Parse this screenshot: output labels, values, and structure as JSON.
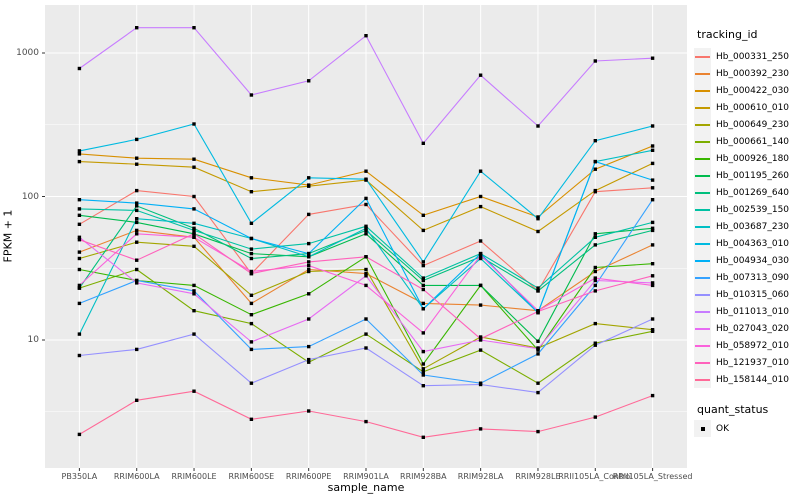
{
  "chart_data": {
    "type": "line",
    "xlabel": "sample_name",
    "ylabel": "FPKM + 1",
    "y_scale": "log10",
    "y_ticks": [
      10,
      100,
      1000
    ],
    "y_tick_labels": [
      "10",
      "100",
      "1000"
    ],
    "y_minor_ticks_log": [
      0.5,
      1.5,
      2.5
    ],
    "grid": "on",
    "panel_bg": "#EBEBEB",
    "grid_color": "#FFFFFF",
    "point_color": "#000000",
    "point_shape": "square",
    "legend_position": "right",
    "categories": [
      "PB350LA",
      "RRIM600LA",
      "RRIM600LE",
      "RRIM600SE",
      "RRIM600PE",
      "RRIM901LA",
      "RRIM928BA",
      "RRIM928LA",
      "RRIM928LE",
      "RRII105LA_Control",
      "RRII105LA_Stressed"
    ],
    "series": [
      {
        "name": "Hb_000331_250",
        "color": "#F8766D",
        "values": [
          64,
          110,
          100,
          29,
          75,
          88,
          33,
          49,
          22,
          108,
          115
        ]
      },
      {
        "name": "Hb_000392_230",
        "color": "#EA8331",
        "values": [
          41,
          58,
          52,
          18,
          31,
          29,
          18,
          17.5,
          16,
          30,
          46
        ]
      },
      {
        "name": "Hb_000422_030",
        "color": "#D89000",
        "values": [
          198,
          185,
          182,
          135,
          120,
          150,
          74,
          100,
          72,
          155,
          225
        ]
      },
      {
        "name": "Hb_000610_010",
        "color": "#C49A00",
        "values": [
          175,
          168,
          160,
          108,
          118,
          130,
          58,
          85,
          57,
          110,
          170
        ]
      },
      {
        "name": "Hb_000649_230",
        "color": "#A3A500",
        "values": [
          37,
          48,
          45,
          20.5,
          30,
          31,
          6.3,
          10.5,
          8.8,
          13,
          11.8
        ]
      },
      {
        "name": "Hb_000661_140",
        "color": "#7CAE00",
        "values": [
          23,
          31,
          16,
          13,
          7,
          11,
          6,
          8.5,
          5,
          9.5,
          11.5
        ]
      },
      {
        "name": "Hb_000926_180",
        "color": "#39B600",
        "values": [
          31,
          26,
          24,
          15,
          21,
          38,
          6.8,
          24,
          8.5,
          32,
          34
        ]
      },
      {
        "name": "Hb_001195_260",
        "color": "#00BB4E",
        "values": [
          74,
          66,
          55,
          40,
          38,
          55,
          24,
          24,
          9.8,
          55,
          60
        ]
      },
      {
        "name": "Hb_001269_640",
        "color": "#00BF7D",
        "values": [
          23,
          86,
          60,
          37,
          40,
          58,
          26,
          38,
          22,
          46,
          58
        ]
      },
      {
        "name": "Hb_002539_150",
        "color": "#00C1A3",
        "values": [
          82,
          80,
          58,
          43,
          47,
          62,
          27,
          40,
          23,
          52,
          66
        ]
      },
      {
        "name": "Hb_003687_230",
        "color": "#00BFC4",
        "values": [
          11,
          70,
          65,
          51,
          38,
          60,
          16.5,
          37,
          15.5,
          175,
          210
        ]
      },
      {
        "name": "Hb_004363_010",
        "color": "#00BAE0",
        "values": [
          208,
          250,
          320,
          65,
          135,
          132,
          35,
          150,
          70,
          245,
          310
        ]
      },
      {
        "name": "Hb_004934_030",
        "color": "#00B0F6",
        "values": [
          95,
          90,
          82,
          51,
          40,
          97,
          16.5,
          40,
          15.5,
          175,
          130
        ]
      },
      {
        "name": "Hb_007313_090",
        "color": "#35A2FF",
        "values": [
          18,
          26,
          22,
          8.6,
          9,
          14,
          5.7,
          5,
          8,
          24,
          95
        ]
      },
      {
        "name": "Hb_010315_060",
        "color": "#9590FF",
        "values": [
          7.8,
          8.6,
          11,
          5,
          7.3,
          8.8,
          4.8,
          4.9,
          4.3,
          9.2,
          14
        ]
      },
      {
        "name": "Hb_011013_010",
        "color": "#C77CFF",
        "values": [
          780,
          1500,
          1500,
          510,
          640,
          1320,
          235,
          700,
          310,
          880,
          920
        ]
      },
      {
        "name": "Hb_027043_020",
        "color": "#E76BF3",
        "values": [
          52,
          25,
          21,
          9.7,
          14,
          28,
          8.3,
          10,
          8.7,
          26,
          25
        ]
      },
      {
        "name": "Hb_058972_010",
        "color": "#FA62DB",
        "values": [
          24,
          55,
          52,
          30,
          33,
          24,
          11.2,
          39,
          16,
          27,
          24
        ]
      },
      {
        "name": "Hb_121937_010",
        "color": "#FF62BC",
        "values": [
          50,
          36,
          55,
          29,
          35,
          38,
          22.5,
          10.2,
          15.8,
          22,
          28
        ]
      },
      {
        "name": "Hb_158144_010",
        "color": "#FF6A98",
        "values": [
          2.2,
          3.8,
          4.4,
          2.8,
          3.2,
          2.7,
          2.1,
          2.4,
          2.3,
          2.9,
          4.1
        ]
      }
    ],
    "legend": {
      "tracking_title": "tracking_id",
      "quant_title": "quant_status",
      "quant_value": "OK"
    }
  }
}
